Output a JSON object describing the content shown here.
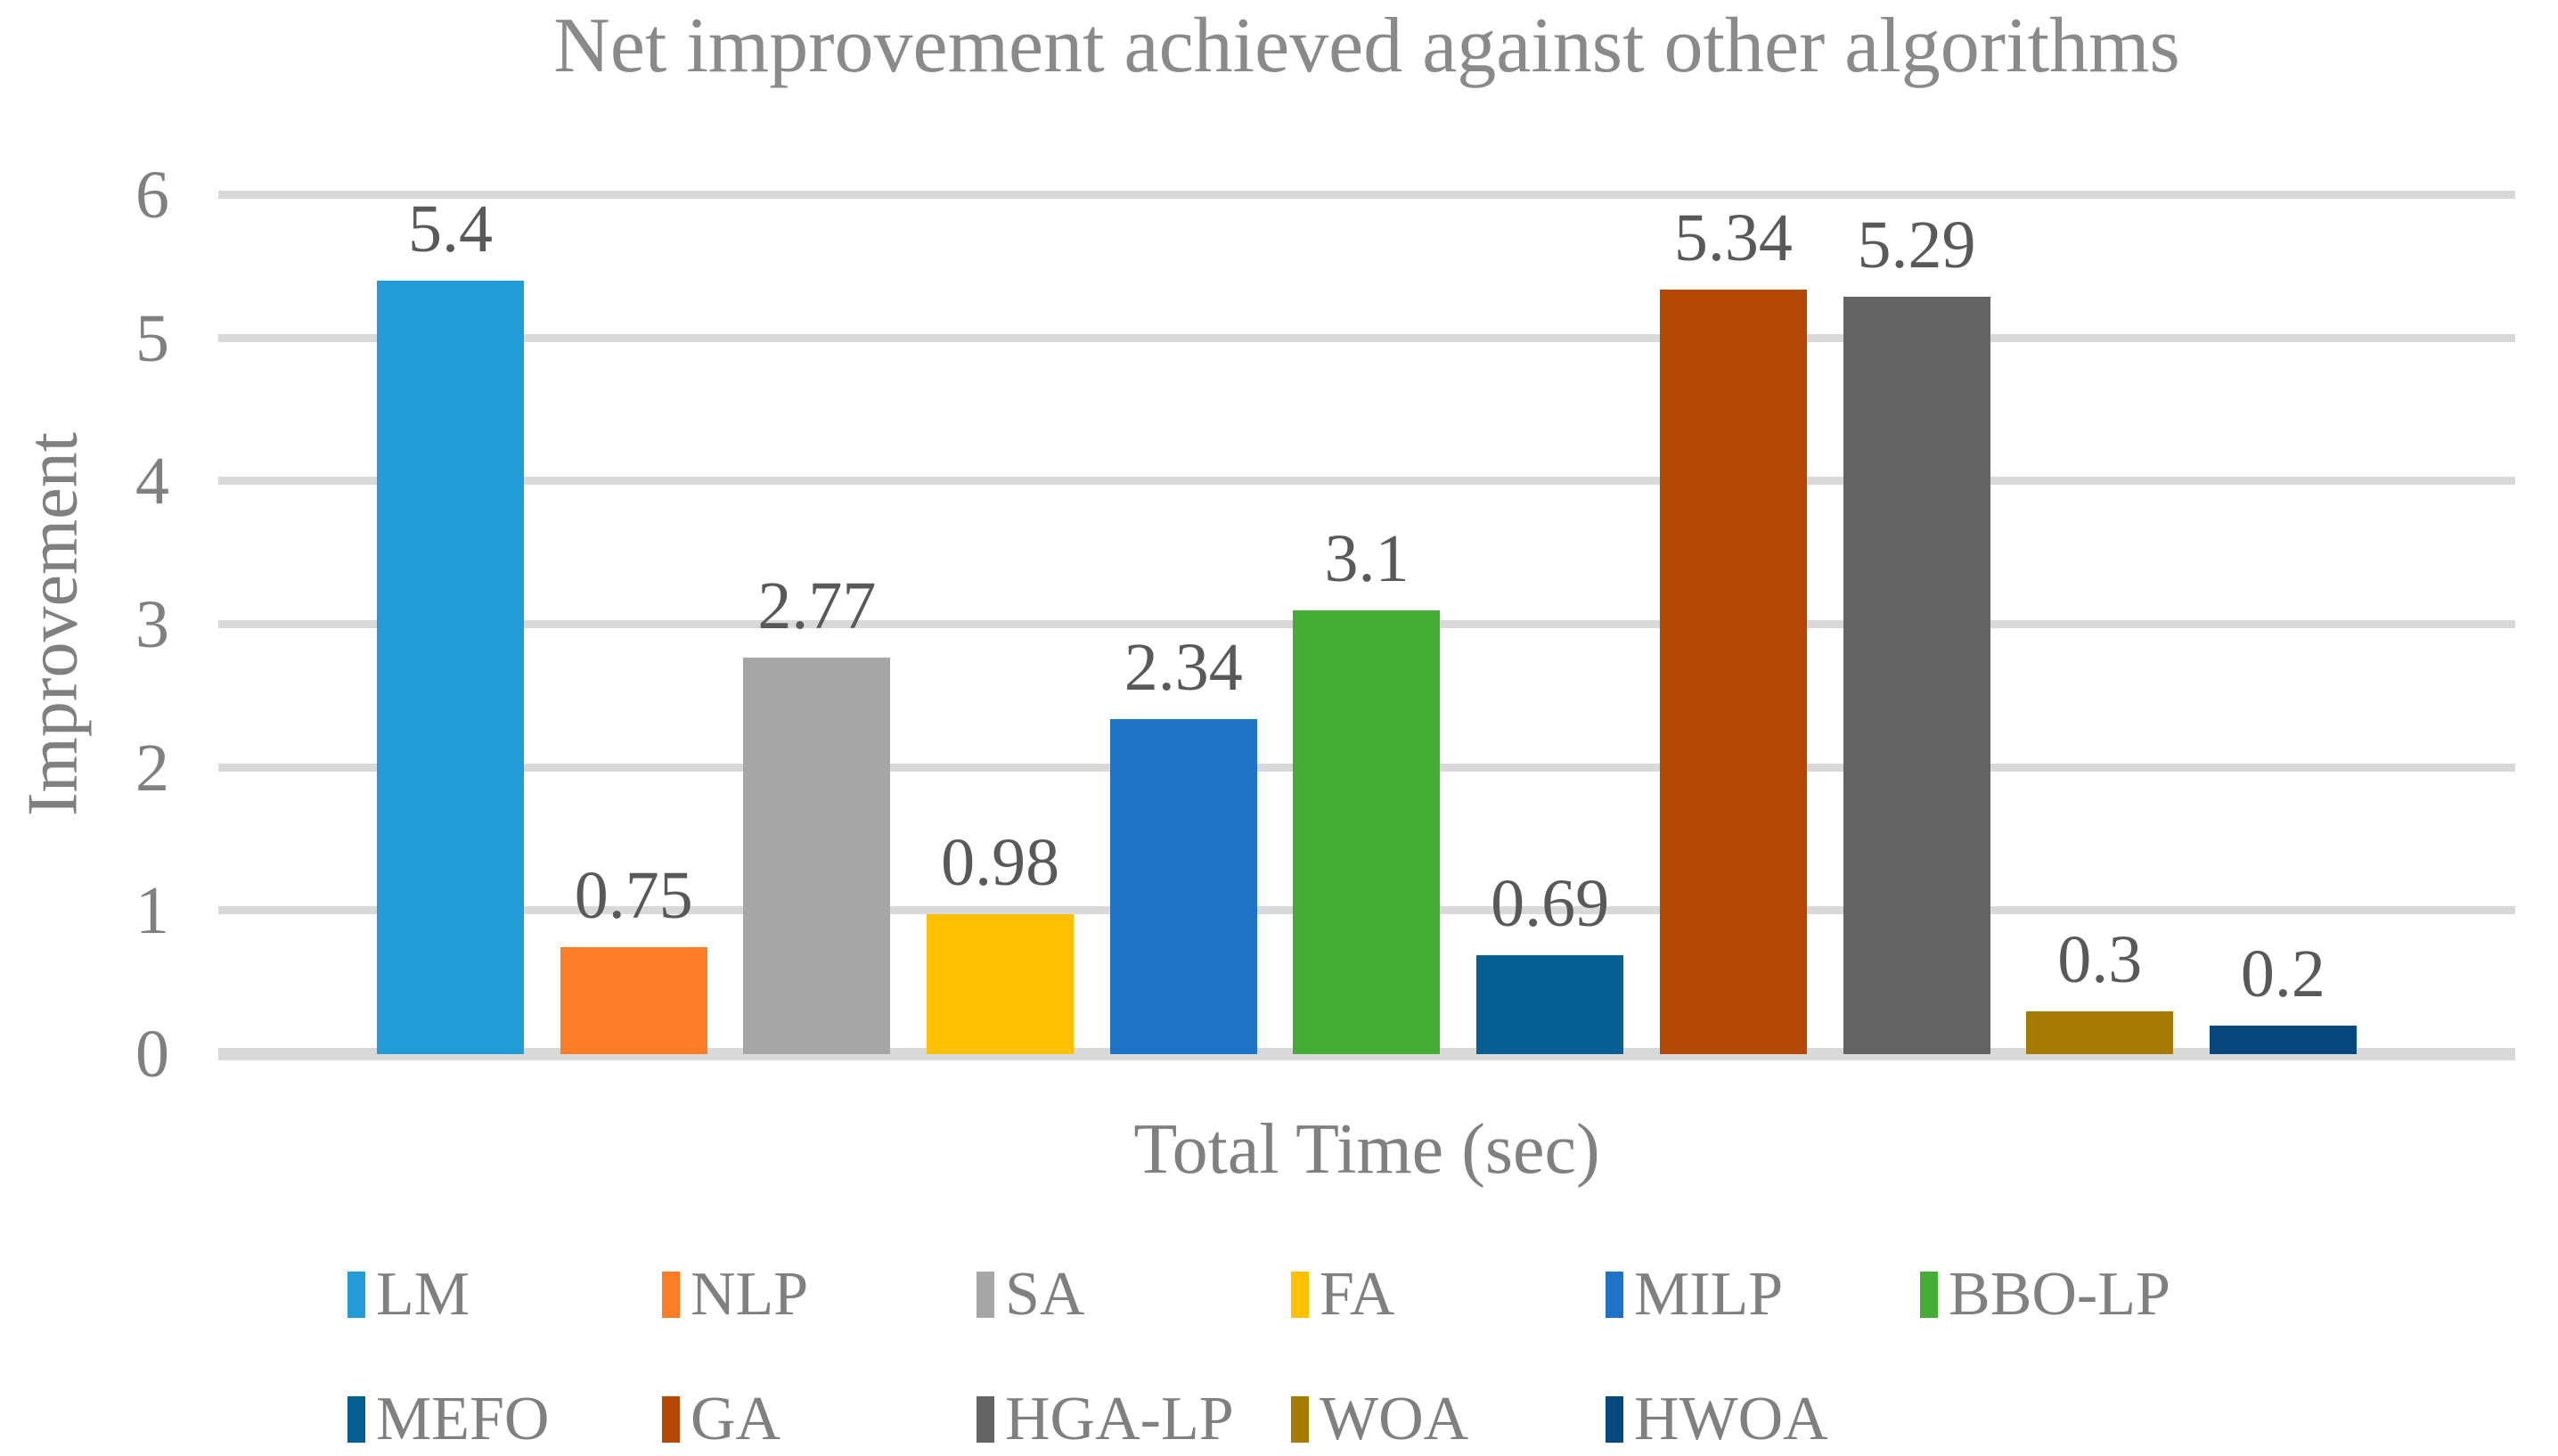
{
  "chart_data": {
    "type": "bar",
    "title": "Net improvement achieved against other algorithms",
    "xlabel": "Total Time (sec)",
    "ylabel": "Improvement",
    "ylim": [
      0,
      6
    ],
    "yticks": [
      0,
      1,
      2,
      3,
      4,
      5,
      6
    ],
    "grid": true,
    "legend_position": "bottom",
    "categories": [
      "LM",
      "NLP",
      "SA",
      "FA",
      "MILP",
      "BBO-LP",
      "MEFO",
      "GA",
      "HGA-LP",
      "WOA",
      "HWOA"
    ],
    "values": [
      5.4,
      0.75,
      2.77,
      0.98,
      2.34,
      3.1,
      0.69,
      5.34,
      5.29,
      0.3,
      0.2
    ],
    "labels": [
      "5.4",
      "0.75",
      "2.77",
      "0.98",
      "2.34",
      "3.1",
      "0.69",
      "5.34",
      "5.29",
      "0.3",
      "0.2"
    ],
    "colors": [
      "#219CD9",
      "#FB7D26",
      "#A6A6A6",
      "#FFC000",
      "#1F73C7",
      "#44AD34",
      "#055E94",
      "#B44802",
      "#636363",
      "#A67B01",
      "#03477C"
    ]
  },
  "styles": {
    "title_color": "#8A8A8A",
    "axis_text_color": "#808080",
    "data_label_color": "#595959",
    "gridline_color": "#D9D9D9"
  }
}
